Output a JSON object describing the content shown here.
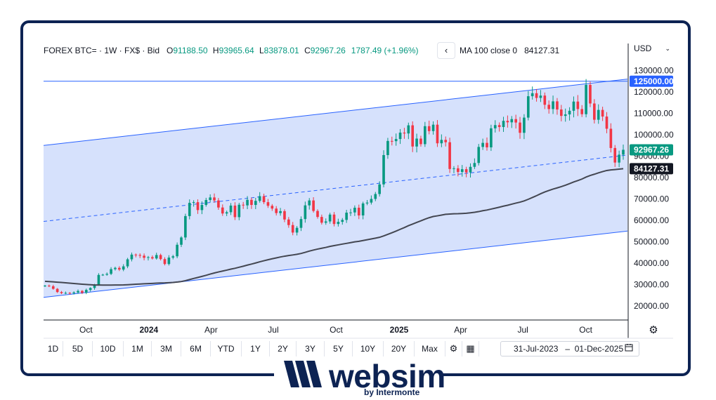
{
  "header": {
    "symbol": "FOREX BTC= · 1W · FX$ · Bid",
    "open_key": "O",
    "open": "91188.50",
    "high_key": "H",
    "high": "93965.64",
    "low_key": "L",
    "low": "83878.01",
    "close_key": "C",
    "close": "92967.26",
    "change": "1787.49 (+1.96%)"
  },
  "ma": {
    "label": "MA 100 close 0",
    "value": "84127.31"
  },
  "back_label": "‹",
  "currency": "USD",
  "colors": {
    "up": "#089981",
    "down": "#f23645",
    "channel_fill": "#cfdcfb",
    "channel_line": "#2962ff",
    "ma_line": "#434651",
    "brand": "#0d2353",
    "resistance_tag": "#2962ff",
    "price_tag": "#089981",
    "ma_tag": "#131722"
  },
  "chart_data": {
    "type": "candlestick",
    "ylim": [
      10000,
      135000
    ],
    "y_ticks": [
      "130000.00",
      "120000.00",
      "110000.00",
      "100000.00",
      "90000.00",
      "80000.00",
      "70000.00",
      "60000.00",
      "50000.00",
      "40000.00",
      "30000.00",
      "20000.00"
    ],
    "y_tick_values": [
      130000,
      120000,
      110000,
      100000,
      90000,
      80000,
      70000,
      60000,
      50000,
      40000,
      30000,
      20000
    ],
    "x_range": [
      "2023-07-31",
      "2025-12-01"
    ],
    "x_ticks": [
      {
        "label": "Oct",
        "date": "2023-10-01"
      },
      {
        "label": "2024",
        "date": "2024-01-01"
      },
      {
        "label": "Apr",
        "date": "2024-04-01"
      },
      {
        "label": "Jul",
        "date": "2024-07-01"
      },
      {
        "label": "Oct",
        "date": "2024-10-01"
      },
      {
        "label": "2025",
        "date": "2025-01-01"
      },
      {
        "label": "Apr",
        "date": "2025-04-01"
      },
      {
        "label": "Jul",
        "date": "2025-07-01"
      },
      {
        "label": "Oct",
        "date": "2025-10-01"
      }
    ],
    "bold_x_labels": [
      "2024",
      "2025"
    ],
    "horizontal_level": {
      "value": 125000,
      "label": "125000.00"
    },
    "last_price": {
      "value": 92967.26,
      "label": "92967.26"
    },
    "ma_last": {
      "value": 84127.31,
      "label": "84127.31"
    },
    "channel": {
      "upper": [
        {
          "date": "2023-07-31",
          "value": 95000
        },
        {
          "date": "2025-12-01",
          "value": 126000
        }
      ],
      "middle": [
        {
          "date": "2023-07-31",
          "value": 59500
        },
        {
          "date": "2025-12-01",
          "value": 90500
        }
      ],
      "lower": [
        {
          "date": "2023-07-31",
          "value": 24000
        },
        {
          "date": "2025-12-01",
          "value": 55000
        }
      ]
    },
    "candle_closes_weekly": [
      29500,
      29200,
      28000,
      26500,
      26000,
      26100,
      25900,
      26300,
      27000,
      26200,
      27500,
      28400,
      29800,
      34500,
      34600,
      35000,
      37200,
      37800,
      37000,
      38500,
      41800,
      44000,
      43800,
      43500,
      42500,
      42800,
      42200,
      43800,
      41900,
      39600,
      42600,
      43200,
      48600,
      52000,
      62000,
      68200,
      68500,
      64800,
      67200,
      69500,
      70700,
      69300,
      66000,
      63200,
      63800,
      66900,
      61500,
      67300,
      67000,
      69600,
      67200,
      69100,
      71300,
      68500,
      66800,
      65500,
      63400,
      64300,
      60400,
      57800,
      54300,
      56500,
      60600,
      67000,
      69300,
      64400,
      61600,
      58900,
      59500,
      62700,
      58300,
      59300,
      60200,
      63600,
      63700,
      65900,
      62300,
      67900,
      68300,
      70000,
      72300,
      76800,
      90500,
      97100,
      97000,
      98000,
      101000,
      100600,
      104400,
      94500,
      98200,
      95600,
      104000,
      101700,
      104700,
      96000,
      97600,
      96500,
      84000,
      84300,
      82600,
      83900,
      82400,
      85000,
      86800,
      94300,
      96200,
      94100,
      103000,
      104500,
      103600,
      106500,
      105800,
      107300,
      105700,
      100900,
      108000,
      118000,
      119400,
      117200,
      118300,
      114000,
      112000,
      115600,
      111800,
      108800,
      109500,
      111200,
      115500,
      112000,
      109600,
      123300,
      114600,
      107000,
      111600,
      108500,
      102800,
      93800,
      87000,
      90700,
      92967
    ]
  },
  "settings_icon": "⚙",
  "toolbar": {
    "ranges": [
      "1D",
      "5D",
      "10D",
      "1M",
      "3M",
      "6M",
      "YTD",
      "1Y",
      "2Y",
      "3Y",
      "5Y",
      "10Y",
      "20Y",
      "Max"
    ],
    "gear_icon": "⚙",
    "table_icon": "▦"
  },
  "date_range": {
    "from": "31-Jul-2023",
    "sep": "–",
    "to": "01-Dec-2025",
    "calendar_icon": "📅"
  },
  "logo": {
    "name": "websim",
    "sub": "by Intermonte"
  }
}
